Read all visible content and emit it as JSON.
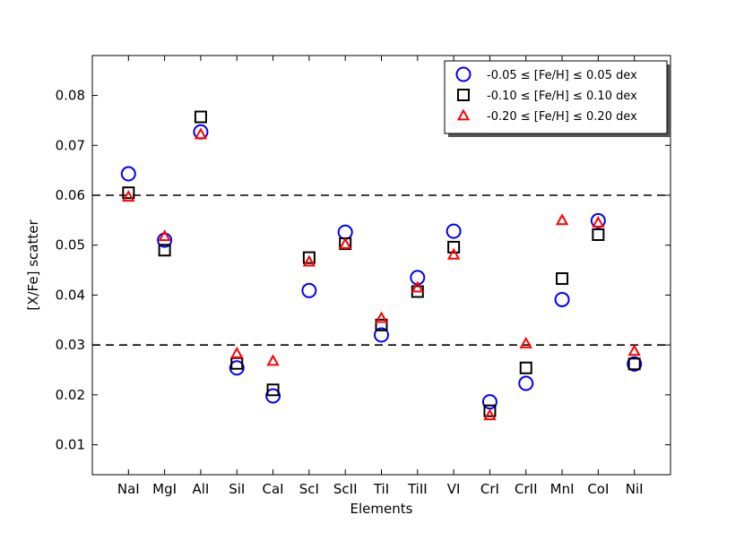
{
  "chart_data": {
    "type": "scatter",
    "title": "",
    "xlabel": "Elements",
    "ylabel": "[X/Fe] scatter",
    "ylim": [
      0.004,
      0.088
    ],
    "yticks": [
      "0.01",
      "0.02",
      "0.03",
      "0.04",
      "0.05",
      "0.06",
      "0.07",
      "0.08"
    ],
    "categories": [
      "NaI",
      "MgI",
      "AlI",
      "SiI",
      "CaI",
      "ScI",
      "ScII",
      "TiI",
      "TiII",
      "VI",
      "CrI",
      "CrII",
      "MnI",
      "CoI",
      "NiI"
    ],
    "reference_lines": [
      0.06,
      0.03
    ],
    "legend_position": "top-right",
    "series": [
      {
        "name": "-0.05 ≤ [Fe/H] ≤ 0.05 dex",
        "marker": "circle",
        "color": "#0000ff",
        "values": [
          0.0643,
          0.051,
          0.0727,
          0.0254,
          0.0198,
          0.0409,
          0.0526,
          0.032,
          0.0435,
          0.0528,
          0.0186,
          0.0223,
          0.0391,
          0.0549,
          0.0262
        ]
      },
      {
        "name": "-0.10 ≤ [Fe/H] ≤ 0.10 dex",
        "marker": "square",
        "color": "#000000",
        "values": [
          0.0605,
          0.049,
          0.0757,
          0.0263,
          0.021,
          0.0475,
          0.0503,
          0.034,
          0.0407,
          0.0496,
          0.0168,
          0.0254,
          0.0433,
          0.0521,
          0.0262
        ]
      },
      {
        "name": "-0.20 ≤ [Fe/H] ≤ 0.20 dex",
        "marker": "triangle",
        "color": "#ff0000",
        "values": [
          0.0597,
          0.0518,
          0.0722,
          0.0283,
          0.0268,
          0.0467,
          0.0502,
          0.0354,
          0.0415,
          0.0481,
          0.0159,
          0.0303,
          0.055,
          0.0545,
          0.0288
        ]
      }
    ]
  }
}
